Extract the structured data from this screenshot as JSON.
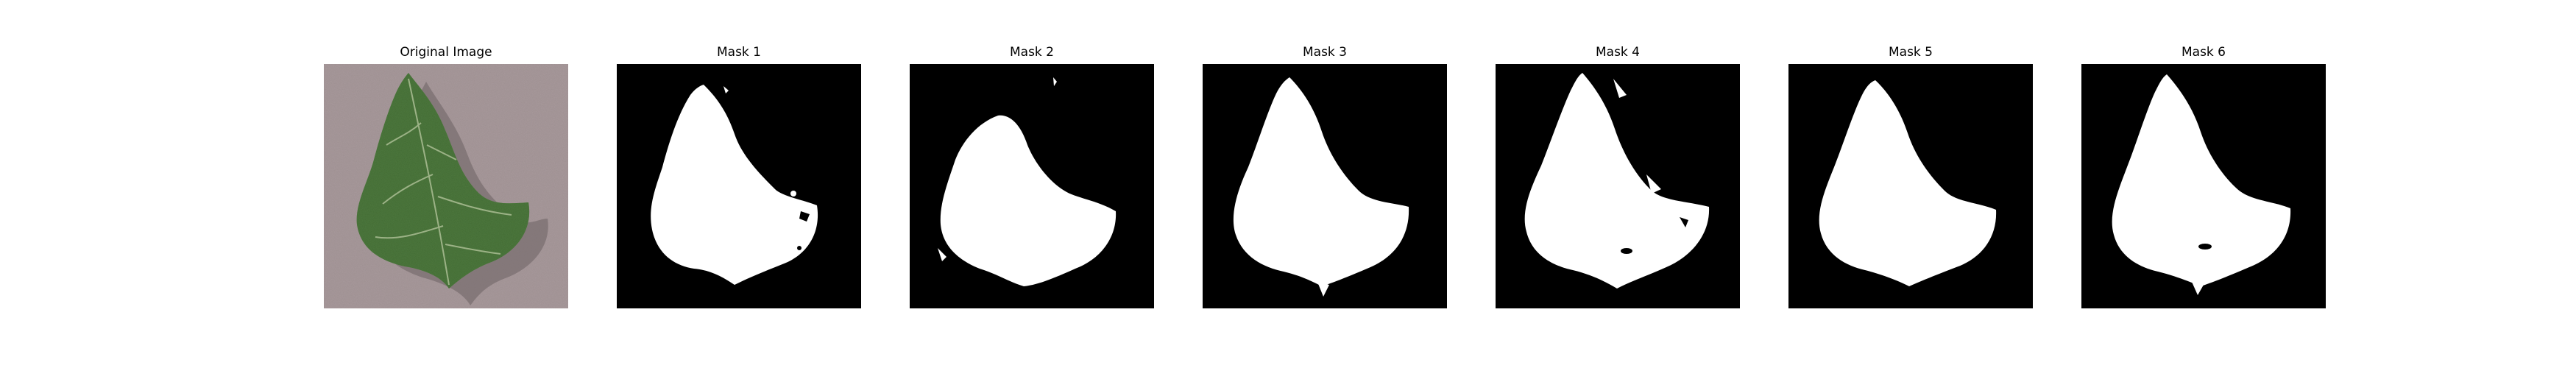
{
  "figure": {
    "panels": [
      {
        "title": "Original Image",
        "kind": "photo",
        "content": "leaf-photo"
      },
      {
        "title": "Mask 1",
        "kind": "mask",
        "content": "binary-mask"
      },
      {
        "title": "Mask 2",
        "kind": "mask",
        "content": "binary-mask"
      },
      {
        "title": "Mask 3",
        "kind": "mask",
        "content": "binary-mask"
      },
      {
        "title": "Mask 4",
        "kind": "mask",
        "content": "binary-mask"
      },
      {
        "title": "Mask 5",
        "kind": "mask",
        "content": "binary-mask"
      },
      {
        "title": "Mask 6",
        "kind": "mask",
        "content": "binary-mask"
      }
    ],
    "colors": {
      "mask_background": "#000000",
      "mask_foreground": "#ffffff",
      "photo_background": "#a89a9c",
      "leaf_green": "#4f7a3f",
      "leaf_dark": "#3a5e2f",
      "vein": "#b8c8a0"
    }
  }
}
